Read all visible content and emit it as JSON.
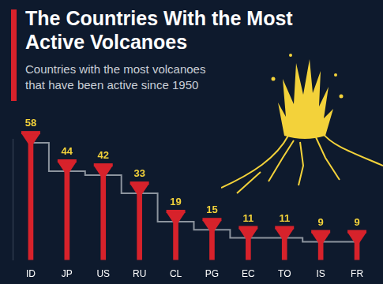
{
  "chart_data": {
    "type": "bar",
    "title": "The Countries With the Most Active Volcanoes",
    "subtitle": "Countries with the most volcanoes that have been active since 1950",
    "categories": [
      "ID",
      "JP",
      "US",
      "RU",
      "CL",
      "PG",
      "EC",
      "TO",
      "IS",
      "FR"
    ],
    "values": [
      58,
      44,
      42,
      33,
      19,
      15,
      11,
      11,
      9,
      9
    ],
    "color": "#d7222b",
    "ylim": [
      0,
      60
    ],
    "yticks": [],
    "grid": false,
    "data_labels": true,
    "tick_labels": "x"
  }
}
